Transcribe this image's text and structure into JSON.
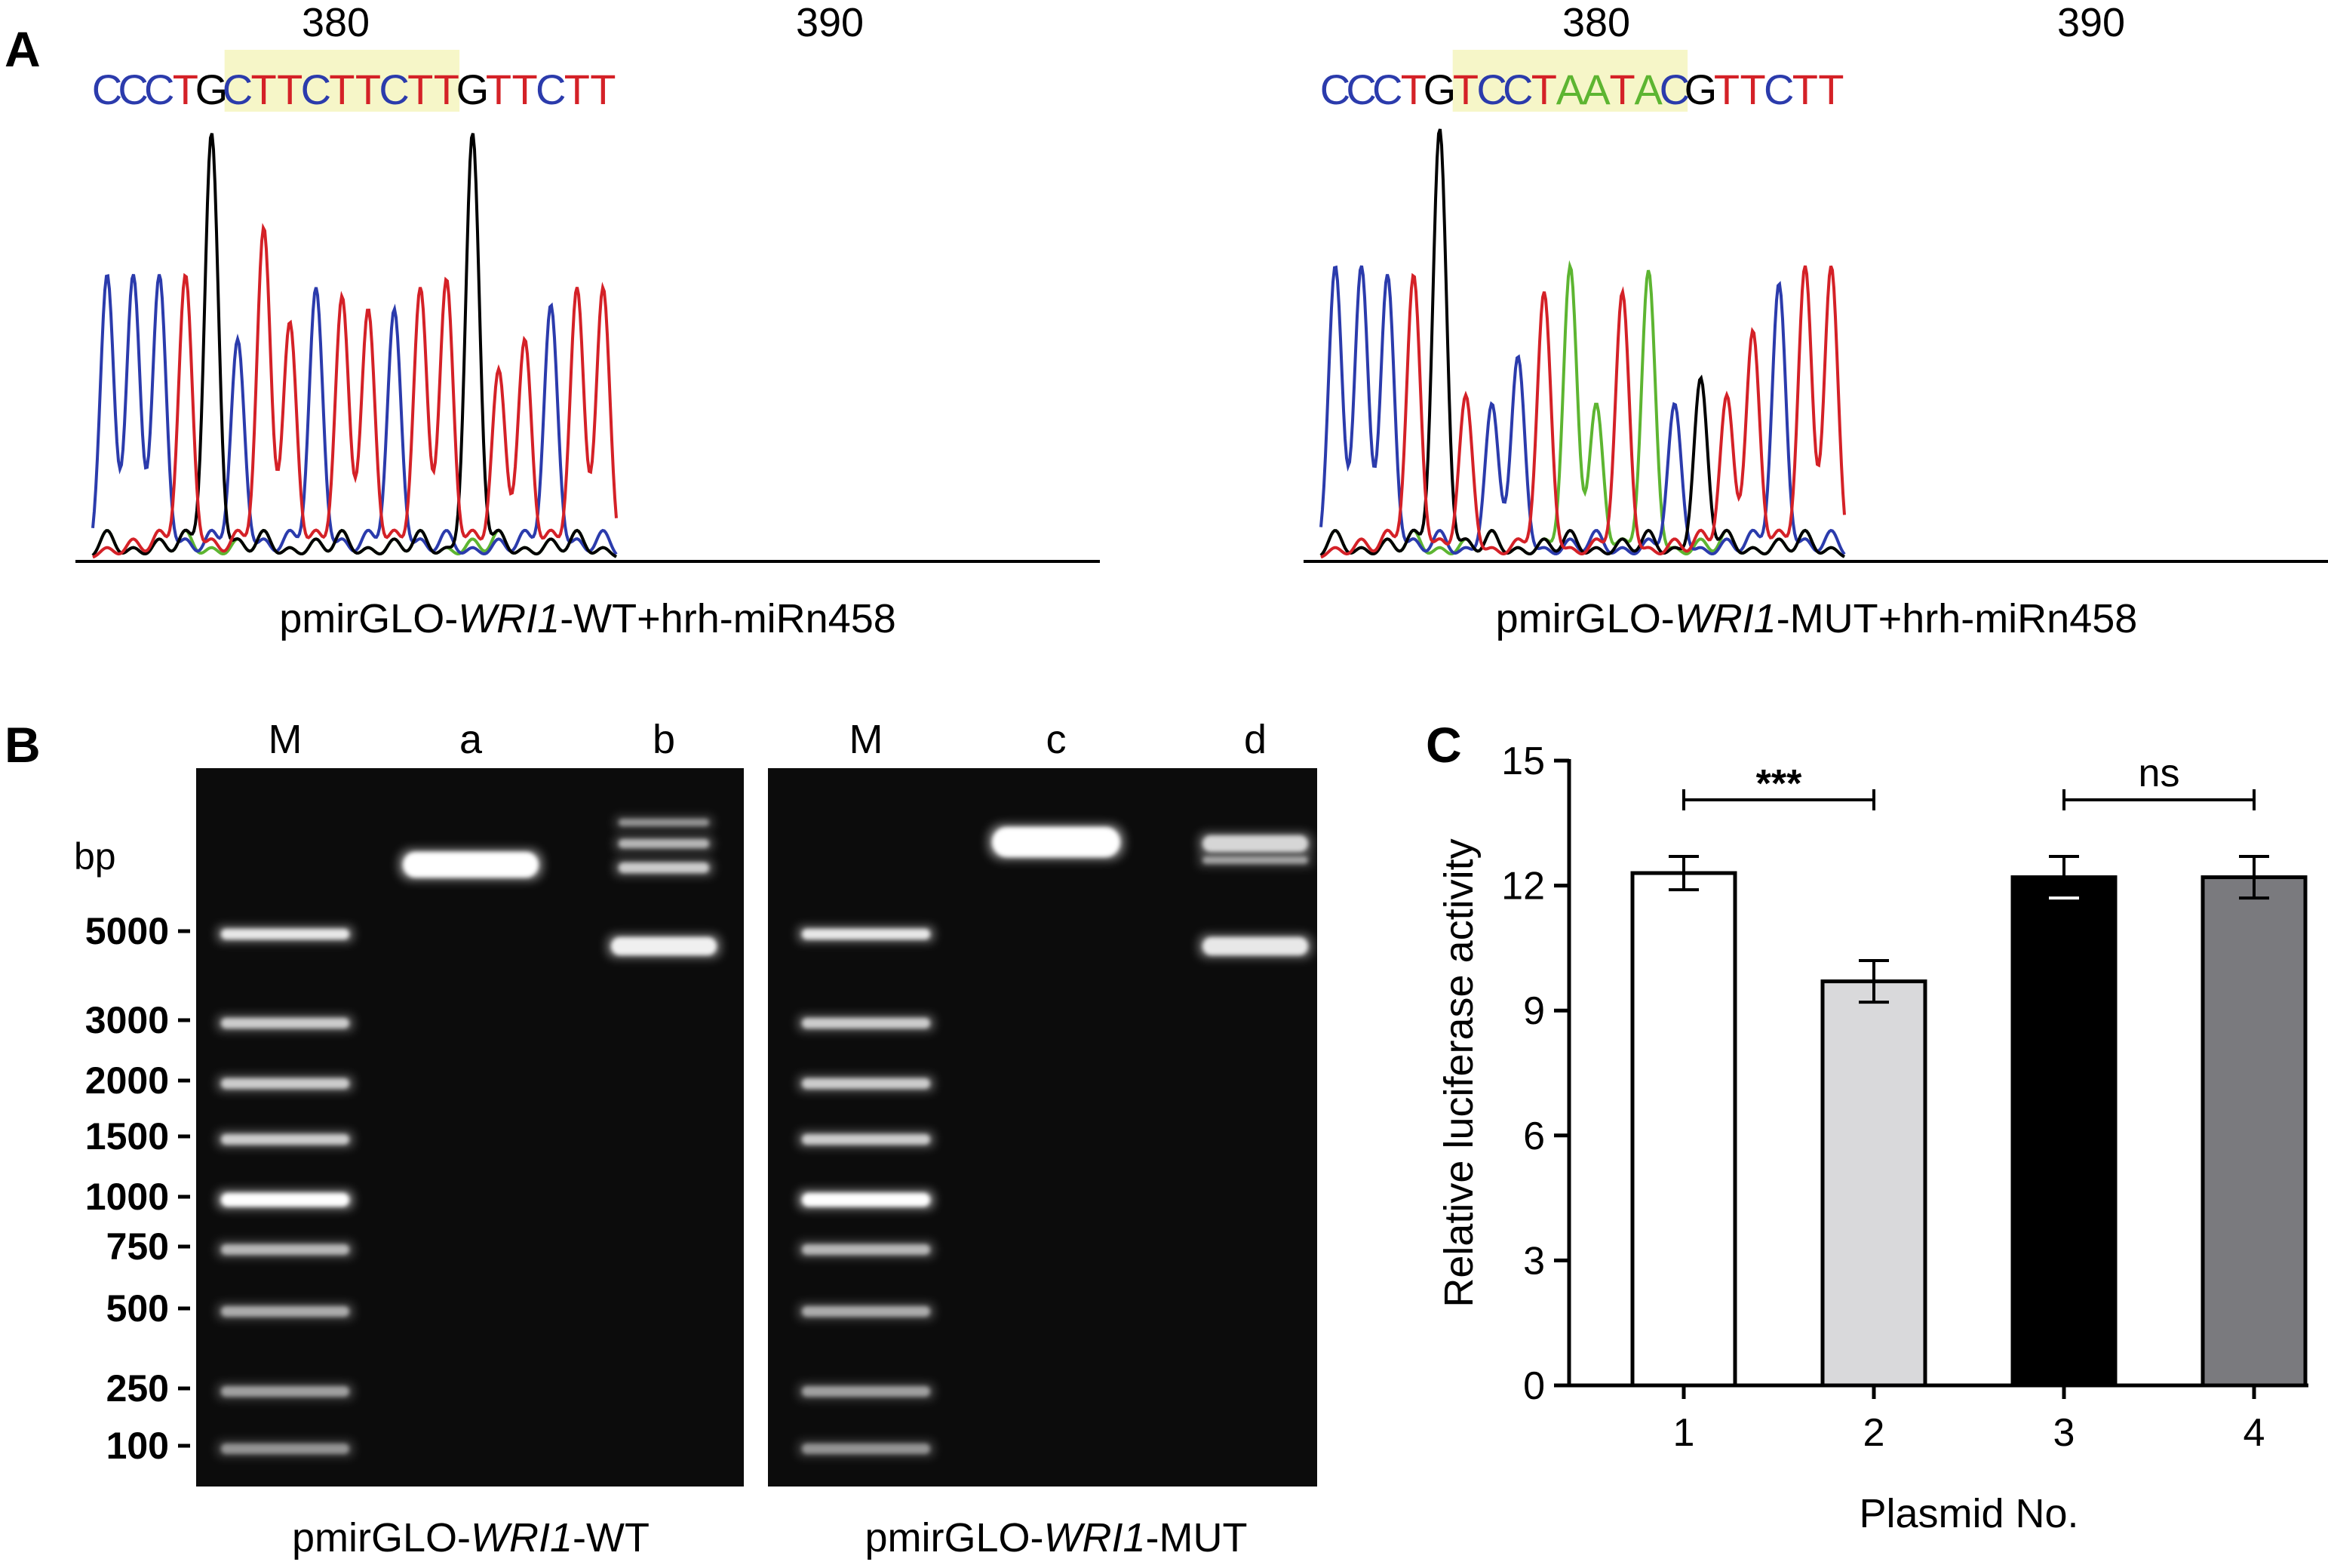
{
  "panel_a": {
    "label": "A",
    "left": {
      "pos1": "380",
      "pos2": "390",
      "bases": [
        "C",
        "C",
        "C",
        "T",
        "G",
        "C",
        "T",
        "T",
        "C",
        "T",
        "T",
        "C",
        "T",
        "T",
        "G",
        "T",
        "T",
        "C",
        "T",
        "T"
      ],
      "highlight": [
        5,
        13
      ],
      "caption_pre": "pmirGLO-",
      "caption_gene": "WRI1",
      "caption_post": "-WT+hrh-miRn458",
      "trace_peaks": [
        {
          "base": "C",
          "h": 0.66
        },
        {
          "base": "C",
          "h": 0.66
        },
        {
          "base": "C",
          "h": 0.66
        },
        {
          "base": "T",
          "h": 0.66
        },
        {
          "base": "G",
          "h": 0.99
        },
        {
          "base": "C",
          "h": 0.51
        },
        {
          "base": "T",
          "h": 0.77
        },
        {
          "base": "T",
          "h": 0.55
        },
        {
          "base": "C",
          "h": 0.63
        },
        {
          "base": "T",
          "h": 0.61
        },
        {
          "base": "T",
          "h": 0.58
        },
        {
          "base": "C",
          "h": 0.58
        },
        {
          "base": "T",
          "h": 0.63
        },
        {
          "base": "T",
          "h": 0.65
        },
        {
          "base": "G",
          "h": 0.99
        },
        {
          "base": "T",
          "h": 0.44
        },
        {
          "base": "T",
          "h": 0.51
        },
        {
          "base": "C",
          "h": 0.59
        },
        {
          "base": "T",
          "h": 0.63
        },
        {
          "base": "T",
          "h": 0.63
        }
      ]
    },
    "right": {
      "pos1": "380",
      "pos2": "390",
      "bases": [
        "C",
        "C",
        "C",
        "T",
        "G",
        "T",
        "C",
        "C",
        "T",
        "A",
        "A",
        "T",
        "A",
        "C",
        "G",
        "T",
        "T",
        "C",
        "T",
        "T"
      ],
      "highlight": [
        5,
        13
      ],
      "caption_pre": "pmirGLO-",
      "caption_gene": "WRI1",
      "caption_post": "-MUT+hrh-miRn458",
      "trace_peaks": [
        {
          "base": "C",
          "h": 0.68
        },
        {
          "base": "C",
          "h": 0.68
        },
        {
          "base": "C",
          "h": 0.66
        },
        {
          "base": "T",
          "h": 0.66
        },
        {
          "base": "G",
          "h": 1.0
        },
        {
          "base": "T",
          "h": 0.38
        },
        {
          "base": "C",
          "h": 0.36
        },
        {
          "base": "C",
          "h": 0.47
        },
        {
          "base": "T",
          "h": 0.62
        },
        {
          "base": "A",
          "h": 0.68
        },
        {
          "base": "A",
          "h": 0.36
        },
        {
          "base": "T",
          "h": 0.62
        },
        {
          "base": "A",
          "h": 0.67
        },
        {
          "base": "C",
          "h": 0.36
        },
        {
          "base": "G",
          "h": 0.42
        },
        {
          "base": "T",
          "h": 0.38
        },
        {
          "base": "T",
          "h": 0.53
        },
        {
          "base": "C",
          "h": 0.64
        },
        {
          "base": "T",
          "h": 0.68
        },
        {
          "base": "T",
          "h": 0.68
        }
      ]
    },
    "base_colors": {
      "A": "#5db531",
      "C": "#2b3bac",
      "G": "#000000",
      "T": "#d42127"
    },
    "highlight_color": "#f6f6c8"
  },
  "panel_b": {
    "label": "B",
    "bp_label": "bp",
    "ladder": [
      "5000",
      "3000",
      "2000",
      "1500",
      "1000",
      "750",
      "500",
      "250",
      "100"
    ],
    "gels": [
      {
        "lanes": [
          "M",
          "a",
          "b"
        ],
        "caption_pre": "pmirGLO-",
        "caption_gene": "WRI1",
        "caption_post": "-WT"
      },
      {
        "lanes": [
          "M",
          "c",
          "d"
        ],
        "caption_pre": "pmirGLO-",
        "caption_gene": "WRI1",
        "caption_post": "-MUT"
      }
    ]
  },
  "panel_c": {
    "label": "C",
    "chart_data": {
      "type": "bar",
      "categories": [
        "1",
        "2",
        "3",
        "4"
      ],
      "values": [
        12.3,
        9.7,
        12.2,
        12.2
      ],
      "errors": [
        0.4,
        0.5,
        0.5,
        0.5
      ],
      "colors": [
        "#ffffff",
        "#d9d9db",
        "#000000",
        "#7a7a7e"
      ],
      "ylabel": "Relative luciferase activity",
      "xlabel": "Plasmid No.",
      "ylim": [
        0,
        15
      ],
      "yticks": [
        "0",
        "3",
        "6",
        "9",
        "12",
        "15"
      ],
      "significance": [
        {
          "from": "1",
          "to": "2",
          "label": "***"
        },
        {
          "from": "3",
          "to": "4",
          "label": "ns"
        }
      ]
    }
  }
}
